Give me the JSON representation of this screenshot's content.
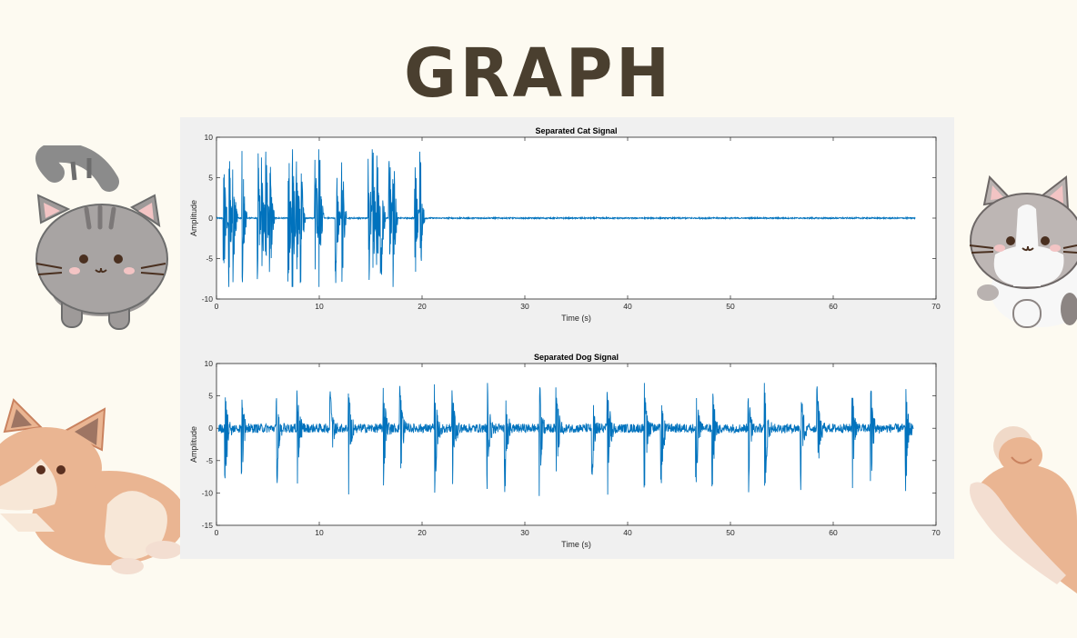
{
  "page": {
    "heading": "GRAPH"
  },
  "chart_data": [
    {
      "type": "line",
      "title": "Separated Cat Signal",
      "xlabel": "Time (s)",
      "ylabel": "Amplitude",
      "xlim": [
        0,
        70
      ],
      "ylim": [
        -10,
        10
      ],
      "xticks": [
        0,
        10,
        20,
        30,
        40,
        50,
        60,
        70
      ],
      "yticks": [
        -10,
        -5,
        0,
        5,
        10
      ],
      "grid": false,
      "color": "#0072bd",
      "series": [
        {
          "signal_end_time": 68,
          "burst_times": [
            0.7,
            1.2,
            1.6,
            2.5,
            4.0,
            4.4,
            4.8,
            5.2,
            7.0,
            7.4,
            7.8,
            8.2,
            9.6,
            10.0,
            11.6,
            12.2,
            14.8,
            15.2,
            15.6,
            16.0,
            16.8,
            17.2,
            19.3,
            19.8
          ],
          "burst_peak_max": 8.5,
          "burst_peak_min": -8.5
        }
      ]
    },
    {
      "type": "line",
      "title": "Separated Dog Signal",
      "xlabel": "Time (s)",
      "ylabel": "Amplitude",
      "xlim": [
        0,
        70
      ],
      "ylim": [
        -15,
        10
      ],
      "xticks": [
        0,
        10,
        20,
        30,
        40,
        50,
        60,
        70
      ],
      "yticks": [
        -15,
        -10,
        -5,
        0,
        5,
        10
      ],
      "grid": false,
      "color": "#0072bd",
      "series": [
        {
          "signal_start_time": 0.2,
          "signal_end_time": 67.8,
          "bark_times": [
            0.8,
            2.4,
            5.8,
            7.8,
            11.0,
            12.8,
            16.2,
            17.8,
            21.2,
            22.9,
            26.3,
            28.0,
            31.4,
            33.0,
            36.5,
            38.0,
            41.6,
            43.2,
            46.6,
            48.2,
            51.7,
            53.3,
            56.8,
            58.4,
            61.8,
            63.6,
            67.0
          ],
          "bark_peak_max": 7,
          "bark_peak_min": -11
        }
      ]
    }
  ]
}
